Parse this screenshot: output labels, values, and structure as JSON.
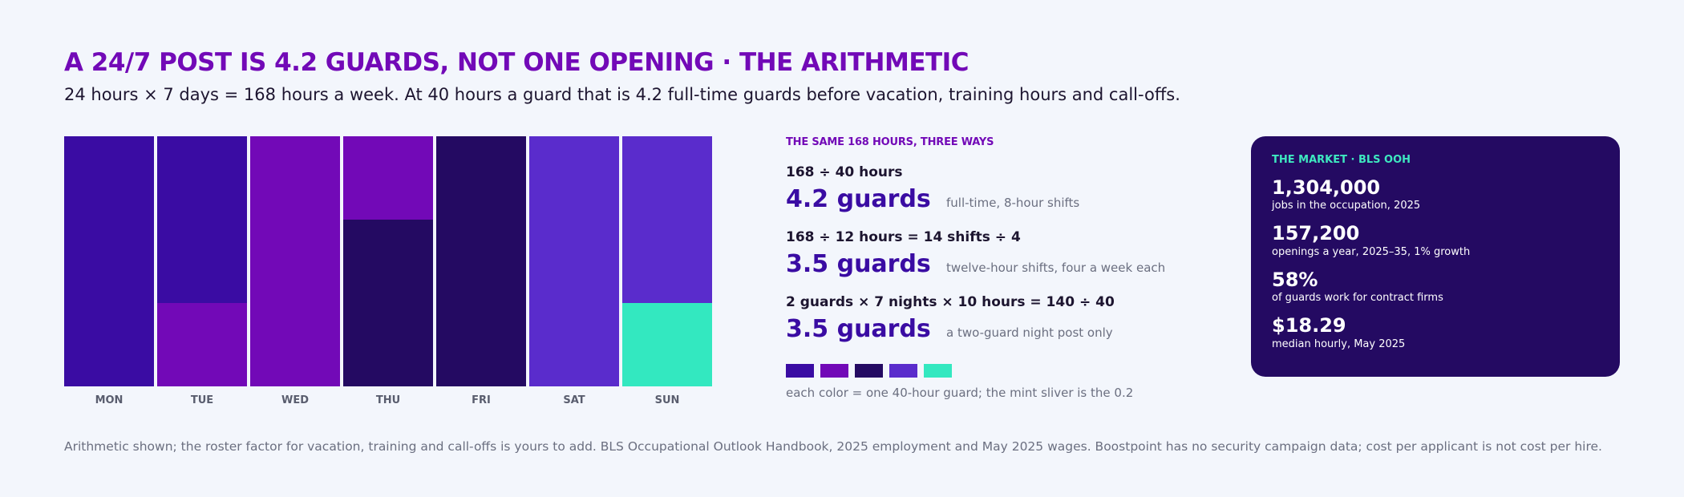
{
  "colors": {
    "indigo": "#3a0ca3",
    "purple": "#7209b7",
    "deep": "#240a62",
    "violet": "#5a2ccc",
    "mint": "#33e8c0"
  },
  "header": {
    "title": "A 24/7 POST IS 4.2 GUARDS, NOT ONE OPENING · THE ARITHMETIC",
    "subtitle": "24 hours × 7 days = 168 hours a week. At 40 hours a guard that is 4.2 full-time guards before vacation, training hours and call-offs."
  },
  "roster": {
    "days": [
      {
        "label": "MON",
        "segments": [
          {
            "color": "#3a0ca3",
            "share": 1.0
          }
        ]
      },
      {
        "label": "TUE",
        "segments": [
          {
            "color": "#3a0ca3",
            "share": 0.667
          },
          {
            "color": "#7209b7",
            "share": 0.333
          }
        ]
      },
      {
        "label": "WED",
        "segments": [
          {
            "color": "#7209b7",
            "share": 1.0
          }
        ]
      },
      {
        "label": "THU",
        "segments": [
          {
            "color": "#7209b7",
            "share": 0.333
          },
          {
            "color": "#240a62",
            "share": 0.667
          }
        ]
      },
      {
        "label": "FRI",
        "segments": [
          {
            "color": "#240a62",
            "share": 1.0
          }
        ]
      },
      {
        "label": "SAT",
        "segments": [
          {
            "color": "#5a2ccc",
            "share": 1.0
          }
        ]
      },
      {
        "label": "SUN",
        "segments": [
          {
            "color": "#5a2ccc",
            "share": 0.667
          },
          {
            "color": "#33e8c0",
            "share": 0.333
          }
        ]
      }
    ]
  },
  "ways": {
    "title": "THE SAME 168 HOURS, THREE WAYS",
    "items": [
      {
        "formula": "168 ÷ 40 hours",
        "result": "4.2 guards",
        "note": "full-time, 8-hour shifts"
      },
      {
        "formula": "168 ÷ 12 hours = 14 shifts ÷ 4",
        "result": "3.5 guards",
        "note": "twelve-hour shifts, four a week each"
      },
      {
        "formula": "2 guards × 7 nights × 10 hours = 140 ÷ 40",
        "result": "3.5 guards",
        "note": "a two-guard night post only"
      }
    ],
    "legend_swatches": [
      "#3a0ca3",
      "#7209b7",
      "#240a62",
      "#5a2ccc",
      "#33e8c0"
    ],
    "legend_note": "each color = one 40-hour guard; the mint sliver is the 0.2"
  },
  "market": {
    "title": "THE MARKET · BLS OOH",
    "stats": [
      {
        "value": "1,304,000",
        "desc": "jobs in the occupation, 2025"
      },
      {
        "value": "157,200",
        "desc": "openings a year, 2025–35, 1% growth"
      },
      {
        "value": "58%",
        "desc": "of guards work for contract firms"
      },
      {
        "value": "$18.29",
        "desc": "median hourly, May 2025"
      }
    ]
  },
  "footnote": "Arithmetic shown; the roster factor for vacation, training and call-offs is yours to add. BLS Occupational Outlook Handbook, 2025 employment and May 2025 wages. Boostpoint has no security campaign data; cost per applicant is not cost per hire."
}
